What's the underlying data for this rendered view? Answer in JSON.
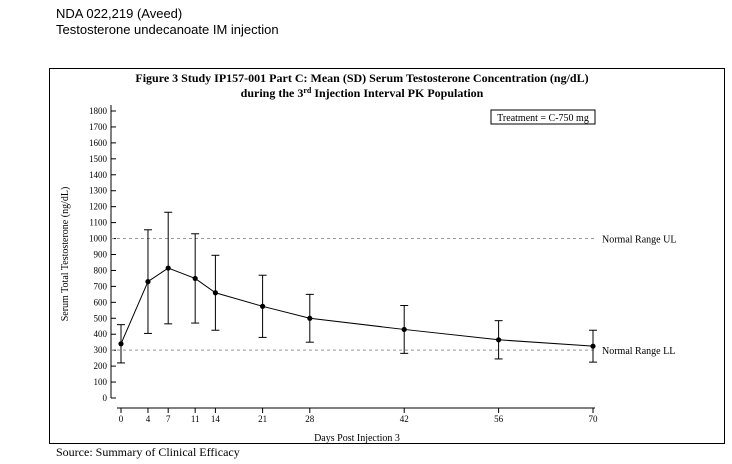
{
  "header": {
    "line1": "NDA 022,219 (Aveed)",
    "line2": "Testosterone undecanoate IM injection"
  },
  "source": "Source: Summary of Clinical Efficacy",
  "chart_data": {
    "type": "line",
    "title_line1": "Figure 3 Study IP157-001 Part C: Mean (SD) Serum Testosterone Concentration (ng/dL)",
    "title_line2_pre": "during the 3",
    "title_line2_sup": "rd",
    "title_line2_post": " Injection Interval  PK Population",
    "xlabel": "Days Post Injection 3",
    "ylabel": "Serum Total Testosterone (ng/dL)",
    "legend": "Treatment = C-750 mg",
    "legend_position": "top-right",
    "xlim": [
      0,
      70
    ],
    "ylim": [
      0,
      1800
    ],
    "x_ticks": [
      0,
      4,
      7,
      11,
      14,
      21,
      28,
      42,
      56,
      70
    ],
    "y_ticks": [
      0,
      100,
      200,
      300,
      400,
      500,
      600,
      700,
      800,
      900,
      1000,
      1100,
      1200,
      1300,
      1400,
      1500,
      1600,
      1700,
      1800
    ],
    "series": [
      {
        "x": [
          0,
          4,
          7,
          11,
          14,
          21,
          28,
          42,
          56,
          70
        ],
        "mean": [
          340,
          730,
          815,
          750,
          660,
          575,
          500,
          430,
          365,
          325
        ],
        "sd": [
          120,
          325,
          350,
          280,
          235,
          195,
          150,
          150,
          120,
          100
        ]
      }
    ],
    "reference_lines": [
      {
        "label": "Normal Range UL",
        "y": 1000
      },
      {
        "label": "Normal Range LL",
        "y": 300
      }
    ],
    "grid": false,
    "colors": {
      "line": "#000000",
      "refline": "#999999"
    }
  }
}
